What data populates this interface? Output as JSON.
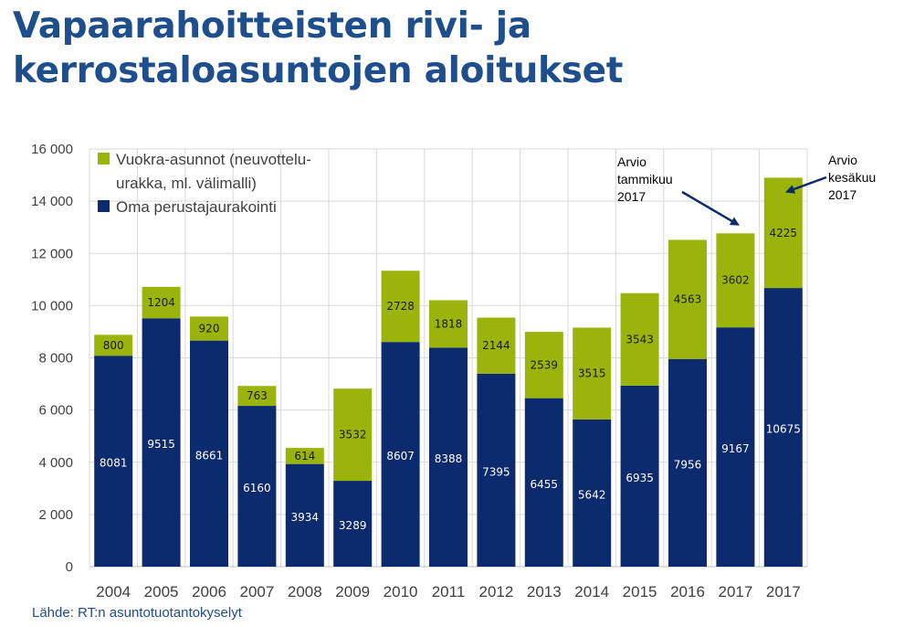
{
  "title": "Vapaarahoitteisten rivi- ja kerrostaloasuntojen aloitukset",
  "source": "Lähde: RT:n asuntotuotantokyselyt",
  "colors": {
    "oma": "#0c2a6e",
    "vuokra": "#9bb40c",
    "grid": "#d9d9d9",
    "arrow": "#0c2a6e"
  },
  "legend": [
    {
      "series": "vuokra",
      "lines": [
        "Vuokra-asunnot (neuvottelu-",
        "urakka, ml. välimalli)"
      ]
    },
    {
      "series": "oma",
      "lines": [
        "Oma perustajaurakointi"
      ]
    }
  ],
  "annotations": [
    {
      "lines": [
        "Arvio",
        "tammikuu",
        "2017"
      ],
      "points_to": 13
    },
    {
      "lines": [
        "Arvio",
        "kesäkuu",
        "2017"
      ],
      "points_to": 14
    }
  ],
  "chart_data": {
    "type": "bar",
    "stacked": true,
    "categories": [
      "2004",
      "2005",
      "2006",
      "2007",
      "2008",
      "2009",
      "2010",
      "2011",
      "2012",
      "2013",
      "2014",
      "2015",
      "2016",
      "2017",
      "2017"
    ],
    "series": [
      {
        "key": "oma",
        "name": "Oma perustajaurakointi",
        "values": [
          8081,
          9515,
          8661,
          6160,
          3934,
          3289,
          8607,
          8388,
          7395,
          6455,
          5642,
          6935,
          7956,
          9167,
          10675
        ]
      },
      {
        "key": "vuokra",
        "name": "Vuokra-asunnot (neuvottelu-urakka, ml. välimalli)",
        "values": [
          800,
          1204,
          920,
          763,
          614,
          3532,
          2728,
          1818,
          2144,
          2539,
          3515,
          3543,
          4563,
          3602,
          4225
        ]
      }
    ],
    "ylim": [
      0,
      16000
    ],
    "yticks": [
      0,
      2000,
      4000,
      6000,
      8000,
      10000,
      12000,
      14000,
      16000
    ],
    "ytick_labels": [
      "0",
      "2 000",
      "4 000",
      "6 000",
      "8 000",
      "10 000",
      "12 000",
      "14 000",
      "16 000"
    ],
    "grid": true,
    "legend_position": "top-left"
  }
}
